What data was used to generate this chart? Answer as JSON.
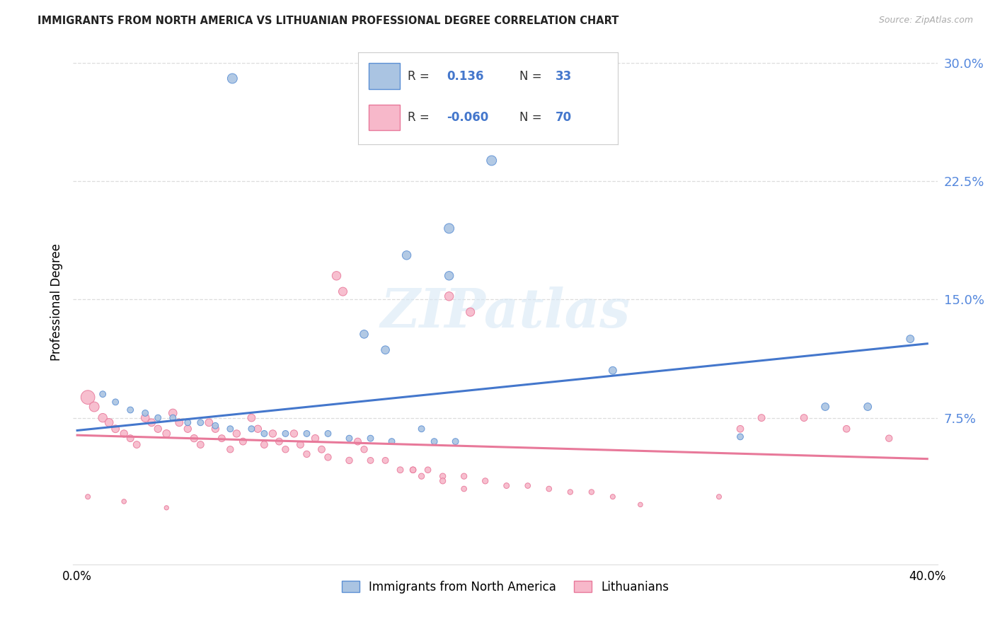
{
  "title": "IMMIGRANTS FROM NORTH AMERICA VS LITHUANIAN PROFESSIONAL DEGREE CORRELATION CHART",
  "source": "Source: ZipAtlas.com",
  "ylabel": "Professional Degree",
  "ylim": [
    -0.018,
    0.315
  ],
  "xlim": [
    -0.002,
    0.405
  ],
  "ytick_vals": [
    0.0,
    0.075,
    0.15,
    0.225,
    0.3
  ],
  "ytick_labels": [
    "",
    "7.5%",
    "15.0%",
    "22.5%",
    "30.0%"
  ],
  "xtick_vals": [
    0.0,
    0.4
  ],
  "xtick_labels": [
    "0.0%",
    "40.0%"
  ],
  "blue_R": "0.136",
  "blue_N": "33",
  "pink_R": "-0.060",
  "pink_N": "70",
  "blue_scatter_color": "#aac4e2",
  "pink_scatter_color": "#f7b8ca",
  "blue_edge_color": "#5b8fd4",
  "pink_edge_color": "#e8789a",
  "blue_line_color": "#4477cc",
  "pink_line_color": "#e8799a",
  "legend_label_blue": "Immigrants from North America",
  "legend_label_pink": "Lithuanians",
  "watermark": "ZIPatlas",
  "title_color": "#222222",
  "source_color": "#aaaaaa",
  "grid_color": "#dddddd",
  "axis_label_color": "#5588dd",
  "blue_line_start_y": 0.067,
  "blue_line_end_y": 0.122,
  "pink_line_start_y": 0.064,
  "pink_line_end_y": 0.049,
  "blue_x": [
    0.073,
    0.195,
    0.175,
    0.155,
    0.175,
    0.135,
    0.145,
    0.012,
    0.018,
    0.025,
    0.032,
    0.038,
    0.045,
    0.052,
    0.058,
    0.065,
    0.072,
    0.082,
    0.088,
    0.098,
    0.108,
    0.118,
    0.128,
    0.138,
    0.148,
    0.162,
    0.168,
    0.178,
    0.252,
    0.312,
    0.352,
    0.372,
    0.392
  ],
  "blue_y": [
    0.29,
    0.238,
    0.195,
    0.178,
    0.165,
    0.128,
    0.118,
    0.09,
    0.085,
    0.08,
    0.078,
    0.075,
    0.075,
    0.072,
    0.072,
    0.07,
    0.068,
    0.068,
    0.065,
    0.065,
    0.065,
    0.065,
    0.062,
    0.062,
    0.06,
    0.068,
    0.06,
    0.06,
    0.105,
    0.063,
    0.082,
    0.082,
    0.125
  ],
  "blue_sizes": [
    100,
    100,
    100,
    80,
    80,
    70,
    70,
    40,
    40,
    40,
    40,
    40,
    40,
    40,
    40,
    40,
    40,
    40,
    40,
    40,
    40,
    40,
    40,
    40,
    40,
    40,
    40,
    40,
    60,
    40,
    60,
    60,
    60
  ],
  "pink_x": [
    0.005,
    0.008,
    0.012,
    0.015,
    0.018,
    0.022,
    0.025,
    0.028,
    0.032,
    0.035,
    0.038,
    0.042,
    0.045,
    0.048,
    0.052,
    0.055,
    0.058,
    0.062,
    0.065,
    0.068,
    0.072,
    0.075,
    0.078,
    0.082,
    0.085,
    0.088,
    0.092,
    0.095,
    0.098,
    0.102,
    0.105,
    0.108,
    0.112,
    0.115,
    0.118,
    0.122,
    0.125,
    0.128,
    0.132,
    0.135,
    0.138,
    0.145,
    0.152,
    0.158,
    0.165,
    0.172,
    0.182,
    0.192,
    0.202,
    0.212,
    0.222,
    0.232,
    0.242,
    0.252,
    0.175,
    0.185,
    0.158,
    0.162,
    0.172,
    0.182,
    0.322,
    0.342,
    0.362,
    0.382,
    0.302,
    0.312,
    0.265,
    0.005,
    0.022,
    0.042
  ],
  "pink_y": [
    0.088,
    0.082,
    0.075,
    0.072,
    0.068,
    0.065,
    0.062,
    0.058,
    0.075,
    0.072,
    0.068,
    0.065,
    0.078,
    0.072,
    0.068,
    0.062,
    0.058,
    0.072,
    0.068,
    0.062,
    0.055,
    0.065,
    0.06,
    0.075,
    0.068,
    0.058,
    0.065,
    0.06,
    0.055,
    0.065,
    0.058,
    0.052,
    0.062,
    0.055,
    0.05,
    0.165,
    0.155,
    0.048,
    0.06,
    0.055,
    0.048,
    0.048,
    0.042,
    0.042,
    0.042,
    0.038,
    0.038,
    0.035,
    0.032,
    0.032,
    0.03,
    0.028,
    0.028,
    0.025,
    0.152,
    0.142,
    0.042,
    0.038,
    0.035,
    0.03,
    0.075,
    0.075,
    0.068,
    0.062,
    0.025,
    0.068,
    0.02,
    0.025,
    0.022,
    0.018
  ],
  "pink_sizes": [
    200,
    100,
    80,
    70,
    60,
    55,
    50,
    50,
    70,
    60,
    55,
    60,
    70,
    60,
    55,
    55,
    50,
    60,
    55,
    50,
    45,
    55,
    50,
    60,
    55,
    50,
    55,
    50,
    45,
    55,
    50,
    45,
    55,
    50,
    45,
    80,
    75,
    45,
    50,
    45,
    40,
    40,
    40,
    38,
    38,
    36,
    35,
    35,
    32,
    30,
    30,
    28,
    28,
    25,
    80,
    75,
    38,
    35,
    35,
    30,
    50,
    50,
    48,
    45,
    25,
    48,
    22,
    25,
    22,
    20
  ]
}
